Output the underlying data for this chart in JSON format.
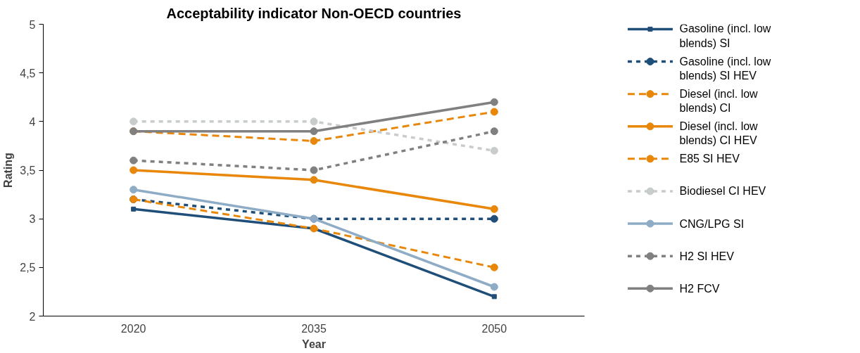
{
  "chart_data": {
    "type": "line",
    "title": "Acceptability indicator Non-OECD countries",
    "xlabel": "Year",
    "ylabel": "Rating",
    "categories": [
      "2020",
      "2035",
      "2050"
    ],
    "ylim": [
      2,
      5
    ],
    "yticks": [
      2,
      {
        "value": 2.5,
        "label": "2,5"
      },
      3,
      {
        "value": 3.5,
        "label": "3,5"
      },
      4,
      {
        "value": 4.5,
        "label": "4,5"
      },
      5
    ],
    "grid": false,
    "legend": "right",
    "series": [
      {
        "name": "Gasoline (incl. low blends) SI",
        "color": "#1f4e79",
        "values": [
          3.1,
          2.9,
          2.2
        ],
        "line_style": "solid",
        "marker": "square"
      },
      {
        "name": "Gasoline (incl. low blends) SI HEV",
        "color": "#1f4e79",
        "values": [
          3.2,
          3.0,
          3.0
        ],
        "line_style": "dotted",
        "marker": "circle"
      },
      {
        "name": "Diesel (incl. low blends) CI",
        "color": "#e8870a",
        "values": [
          3.2,
          2.9,
          2.5
        ],
        "line_style": "dashed",
        "marker": "circle"
      },
      {
        "name": "Diesel (incl. low blends) CI HEV",
        "color": "#e8870a",
        "values": [
          3.5,
          3.4,
          3.1
        ],
        "line_style": "solid",
        "marker": "circle"
      },
      {
        "name": "E85 SI HEV",
        "color": "#e8870a",
        "values": [
          3.9,
          3.8,
          4.1
        ],
        "line_style": "dashed",
        "marker": "circle"
      },
      {
        "name": "Biodiesel CI HEV",
        "color": "#c8cccc",
        "values": [
          4.0,
          4.0,
          3.7
        ],
        "line_style": "dotted",
        "marker": "circle"
      },
      {
        "name": "CNG/LPG SI",
        "color": "#8eacc6",
        "values": [
          3.3,
          3.0,
          2.3
        ],
        "line_style": "solid",
        "marker": "circle"
      },
      {
        "name": "H2 SI HEV",
        "color": "#808080",
        "values": [
          3.6,
          3.5,
          3.9
        ],
        "line_style": "dotted",
        "marker": "circle"
      },
      {
        "name": "H2 FCV",
        "color": "#808080",
        "values": [
          3.9,
          3.9,
          4.2
        ],
        "line_style": "solid",
        "marker": "circle"
      }
    ]
  }
}
